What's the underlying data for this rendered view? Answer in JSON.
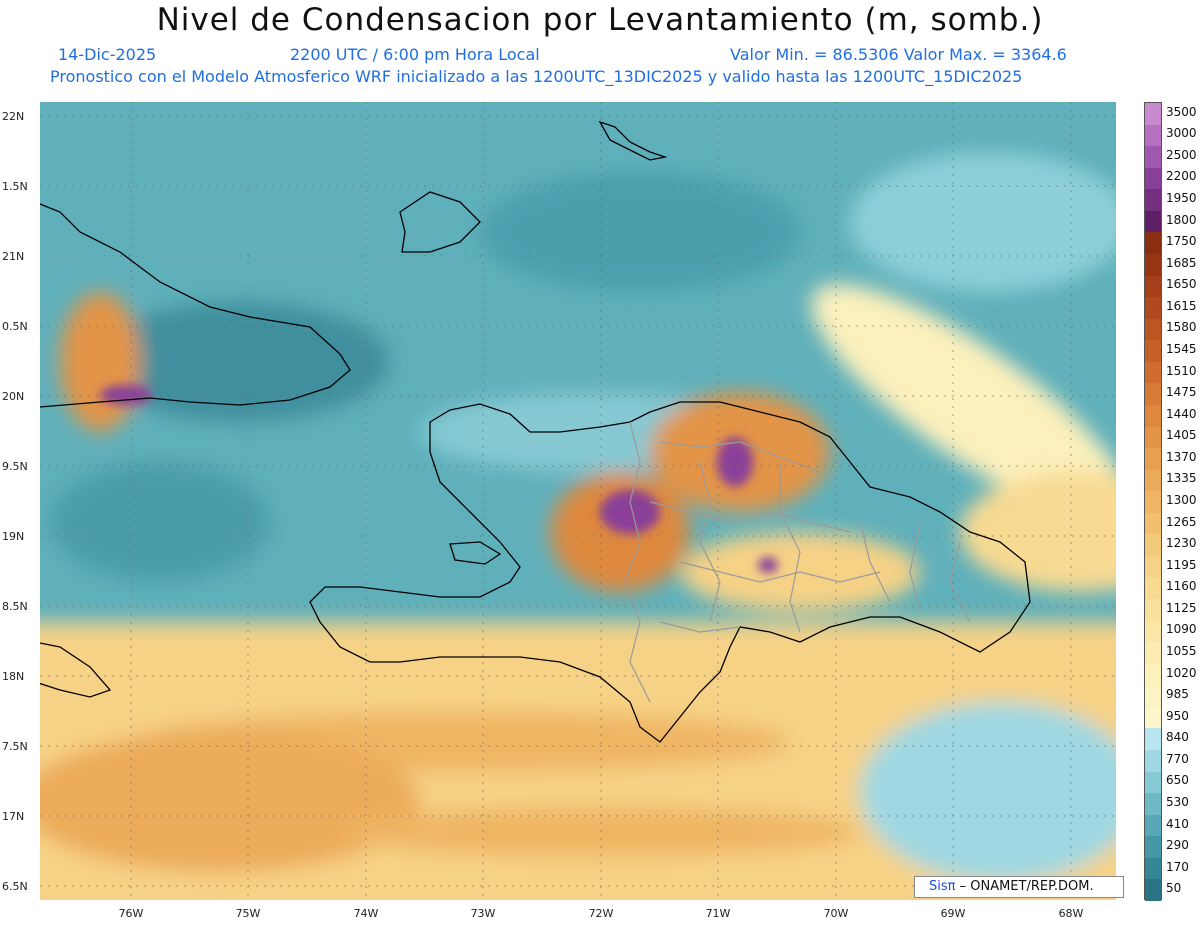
{
  "title": "Nivel de Condensacion por Levantamiento (m, somb.)",
  "header": {
    "date": "14-Dic-2025",
    "time": "2200 UTC / 6:00 pm Hora Local",
    "min_max": "Valor Min. = 86.5306   Valor Max. = 3364.6",
    "forecast": "Pronostico con el Modelo Atmosferico WRF inicializado a las 1200UTC_13DIC2025 y valido hasta las  1200UTC_15DIC2025"
  },
  "axes": {
    "y_labels": [
      "22N",
      "1.5N",
      "21N",
      "0.5N",
      "20N",
      "9.5N",
      "19N",
      "8.5N",
      "18N",
      "7.5N",
      "17N",
      "6.5N"
    ],
    "x_labels": [
      "76W",
      "75W",
      "74W",
      "73W",
      "72W",
      "71W",
      "70W",
      "69W",
      "68W"
    ]
  },
  "colorbar": {
    "labels": [
      "3500",
      "3000",
      "2500",
      "2200",
      "1950",
      "1800",
      "1750",
      "1685",
      "1650",
      "1615",
      "1580",
      "1545",
      "1510",
      "1475",
      "1440",
      "1405",
      "1370",
      "1335",
      "1300",
      "1265",
      "1230",
      "1195",
      "1160",
      "1125",
      "1090",
      "1055",
      "1020",
      "985",
      "950",
      "840",
      "770",
      "650",
      "530",
      "410",
      "290",
      "170",
      "50"
    ],
    "colors": [
      "#c98ad0",
      "#b570bf",
      "#9e58ad",
      "#8a3f98",
      "#74307f",
      "#5e1f66",
      "#8a2e10",
      "#983614",
      "#a5401a",
      "#b04a1e",
      "#bc5522",
      "#c66028",
      "#cf6c2e",
      "#d77a36",
      "#de883e",
      "#e39447",
      "#e8a050",
      "#ecab5a",
      "#efb564",
      "#f2bf6f",
      "#f4c97a",
      "#f6d286",
      "#f8da92",
      "#f9e19d",
      "#fae7a8",
      "#fbecb2",
      "#fcf0bc",
      "#fcf3c4",
      "#fdf6cc",
      "#b9e6ee",
      "#9fd8e2",
      "#86cad6",
      "#6db9c6",
      "#58a8b7",
      "#4597a8",
      "#358697",
      "#2a7585"
    ]
  },
  "credit": {
    "logo": "Sisπ",
    "text": "– ONAMET/REP.DOM."
  }
}
